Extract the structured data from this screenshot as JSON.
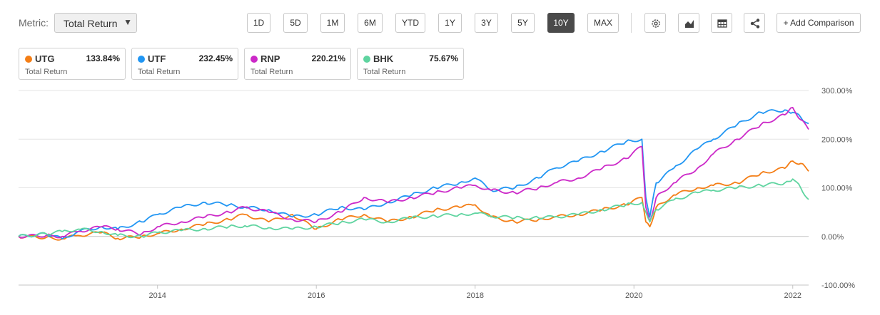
{
  "toolbar": {
    "metric_label": "Metric:",
    "metric_value": "Total Return",
    "ranges": [
      "1D",
      "5D",
      "1M",
      "6M",
      "YTD",
      "1Y",
      "3Y",
      "5Y",
      "10Y",
      "MAX"
    ],
    "active_range": "10Y",
    "icons": [
      "gear-icon",
      "chart-type-icon",
      "table-icon",
      "share-icon"
    ],
    "add_comparison": "+ Add Comparison"
  },
  "cards": [
    {
      "symbol": "UTG",
      "value": "133.84%",
      "label": "Total Return",
      "color": "#f47e16"
    },
    {
      "symbol": "UTF",
      "value": "232.45%",
      "label": "Total Return",
      "color": "#2196f3"
    },
    {
      "symbol": "RNP",
      "value": "220.21%",
      "label": "Total Return",
      "color": "#cc29c8"
    },
    {
      "symbol": "BHK",
      "value": "75.67%",
      "label": "Total Return",
      "color": "#5fd4a0"
    }
  ],
  "chart_data": {
    "type": "line",
    "xlim": [
      2012.25,
      2022.2
    ],
    "ylim": [
      -100,
      300
    ],
    "x_ticks": [
      2014,
      2016,
      2018,
      2020,
      2022
    ],
    "x_tick_labels": [
      "2014",
      "2016",
      "2018",
      "2020",
      "2022"
    ],
    "y_ticks": [
      300,
      200,
      100,
      0,
      -100
    ],
    "y_tick_labels": [
      "300.00%",
      "200.00%",
      "100.00%",
      "0.00%",
      "-100.00%"
    ],
    "grid": "horizontal",
    "legend": "top",
    "series": [
      {
        "name": "UTG",
        "color": "#f47e16",
        "x": [
          2012.25,
          2012.6,
          2012.8,
          2013.0,
          2013.3,
          2013.5,
          2013.8,
          2014.0,
          2014.3,
          2014.6,
          2014.9,
          2015.1,
          2015.4,
          2015.7,
          2016.0,
          2016.3,
          2016.6,
          2016.9,
          2017.2,
          2017.5,
          2017.8,
          2018.0,
          2018.2,
          2018.5,
          2018.8,
          2019.0,
          2019.3,
          2019.6,
          2019.9,
          2020.1,
          2020.15,
          2020.2,
          2020.28,
          2020.5,
          2020.8,
          2021.0,
          2021.3,
          2021.6,
          2021.9,
          2022.0,
          2022.1,
          2022.2
        ],
        "y": [
          0,
          -2,
          -5,
          2,
          8,
          -4,
          0,
          6,
          15,
          25,
          35,
          45,
          30,
          45,
          15,
          35,
          45,
          30,
          40,
          55,
          60,
          65,
          40,
          30,
          35,
          40,
          45,
          55,
          65,
          80,
          30,
          20,
          60,
          85,
          100,
          105,
          110,
          130,
          140,
          155,
          150,
          134
        ]
      },
      {
        "name": "UTF",
        "color": "#2196f3",
        "x": [
          2012.25,
          2012.6,
          2012.8,
          2013.0,
          2013.3,
          2013.5,
          2013.8,
          2014.0,
          2014.3,
          2014.6,
          2014.9,
          2015.1,
          2015.4,
          2015.7,
          2016.0,
          2016.3,
          2016.6,
          2016.9,
          2017.2,
          2017.5,
          2017.8,
          2018.0,
          2018.2,
          2018.5,
          2018.8,
          2019.0,
          2019.3,
          2019.6,
          2019.9,
          2020.1,
          2020.15,
          2020.2,
          2020.28,
          2020.5,
          2020.8,
          2021.0,
          2021.3,
          2021.6,
          2021.9,
          2022.0,
          2022.1,
          2022.2
        ],
        "y": [
          0,
          5,
          -5,
          10,
          20,
          15,
          30,
          45,
          60,
          70,
          65,
          60,
          55,
          40,
          45,
          60,
          55,
          70,
          85,
          100,
          110,
          120,
          95,
          100,
          120,
          140,
          155,
          175,
          195,
          200,
          80,
          40,
          110,
          140,
          180,
          200,
          230,
          255,
          260,
          255,
          245,
          232
        ]
      },
      {
        "name": "RNP",
        "color": "#cc29c8",
        "x": [
          2012.25,
          2012.6,
          2012.8,
          2013.0,
          2013.3,
          2013.5,
          2013.8,
          2014.0,
          2014.3,
          2014.6,
          2014.9,
          2015.1,
          2015.4,
          2015.7,
          2016.0,
          2016.3,
          2016.6,
          2016.9,
          2017.2,
          2017.5,
          2017.8,
          2018.0,
          2018.2,
          2018.5,
          2018.8,
          2019.0,
          2019.3,
          2019.6,
          2019.9,
          2020.1,
          2020.15,
          2020.2,
          2020.28,
          2020.5,
          2020.8,
          2021.0,
          2021.3,
          2021.6,
          2021.9,
          2022.0,
          2022.1,
          2022.2
        ],
        "y": [
          0,
          2,
          0,
          10,
          20,
          15,
          5,
          20,
          30,
          40,
          50,
          60,
          50,
          35,
          30,
          50,
          80,
          70,
          80,
          90,
          100,
          105,
          95,
          90,
          100,
          110,
          120,
          140,
          160,
          185,
          60,
          30,
          80,
          110,
          140,
          170,
          200,
          230,
          250,
          265,
          240,
          220
        ]
      },
      {
        "name": "BHK",
        "color": "#5fd4a0",
        "x": [
          2012.25,
          2012.6,
          2012.8,
          2013.0,
          2013.3,
          2013.5,
          2013.8,
          2014.0,
          2014.3,
          2014.6,
          2014.9,
          2015.1,
          2015.4,
          2015.7,
          2016.0,
          2016.3,
          2016.6,
          2016.9,
          2017.2,
          2017.5,
          2017.8,
          2018.0,
          2018.2,
          2018.5,
          2018.8,
          2019.0,
          2019.3,
          2019.6,
          2019.9,
          2020.1,
          2020.15,
          2020.2,
          2020.28,
          2020.5,
          2020.8,
          2021.0,
          2021.3,
          2021.6,
          2021.9,
          2022.0,
          2022.1,
          2022.2
        ],
        "y": [
          0,
          5,
          10,
          15,
          10,
          2,
          0,
          8,
          12,
          16,
          20,
          22,
          18,
          15,
          20,
          28,
          35,
          30,
          38,
          42,
          45,
          48,
          42,
          38,
          38,
          40,
          45,
          55,
          65,
          70,
          50,
          30,
          55,
          75,
          90,
          95,
          100,
          105,
          110,
          118,
          100,
          76
        ]
      }
    ]
  }
}
